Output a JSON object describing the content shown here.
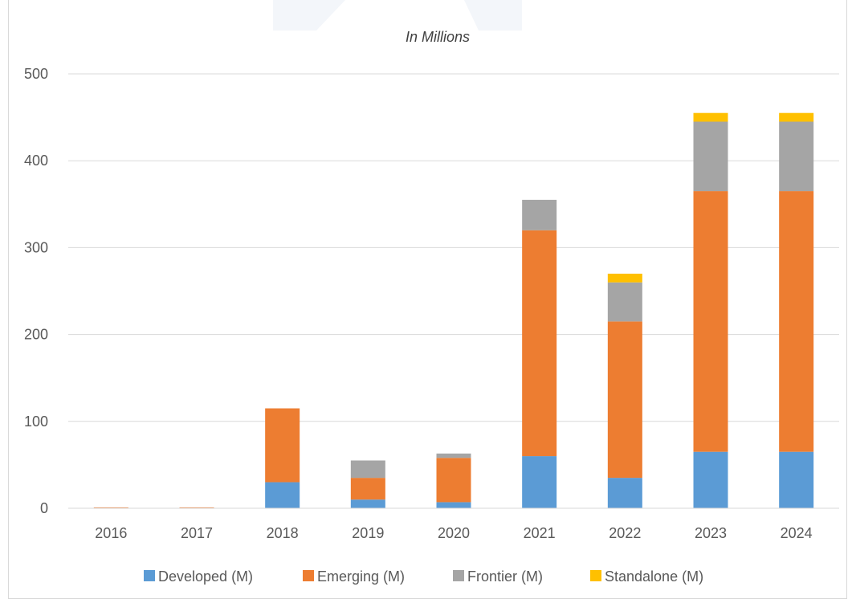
{
  "chart_data": {
    "type": "bar",
    "stacked": true,
    "title": "In Millions",
    "xlabel": "",
    "ylabel": "",
    "categories": [
      "2016",
      "2017",
      "2018",
      "2019",
      "2020",
      "2021",
      "2022",
      "2023",
      "2024"
    ],
    "series": [
      {
        "name": "Developed (M)",
        "color": "#5b9bd5",
        "values": [
          0,
          0,
          30,
          10,
          7,
          60,
          35,
          65,
          65
        ]
      },
      {
        "name": "Emerging (M)",
        "color": "#ed7d31",
        "values": [
          1,
          1,
          85,
          25,
          51,
          260,
          180,
          300,
          300
        ]
      },
      {
        "name": "Frontier (M)",
        "color": "#a5a5a5",
        "values": [
          0,
          0,
          0,
          20,
          5,
          35,
          45,
          80,
          80
        ]
      },
      {
        "name": "Standalone (M)",
        "color": "#ffc000",
        "values": [
          0,
          0,
          0,
          0,
          0,
          0,
          10,
          10,
          10
        ]
      }
    ],
    "yticks": [
      "0",
      "100",
      "200",
      "300",
      "400",
      "500"
    ],
    "ylim": [
      0,
      500
    ],
    "grid": true,
    "legend_position": "bottom"
  }
}
